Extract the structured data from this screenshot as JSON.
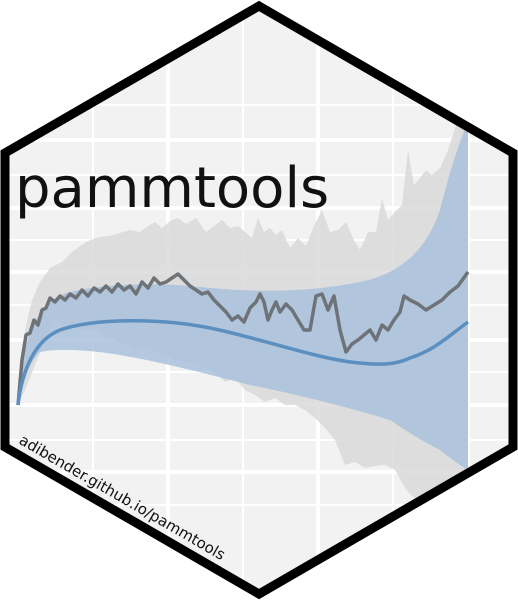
{
  "sticker": {
    "title": "pammtools",
    "url": "adibender.github.io/pammtools"
  },
  "colors": {
    "border": "#000000",
    "panel_background": "#f2f2f2",
    "grid": "#ffffff",
    "empirical_line": "#6e7378",
    "empirical_band": "#d9d9d9",
    "fitted_line": "#5b8fc0",
    "fitted_band": "#a9c1dc"
  },
  "icons": {
    "logo": "pammtools-hex-sticker"
  }
}
